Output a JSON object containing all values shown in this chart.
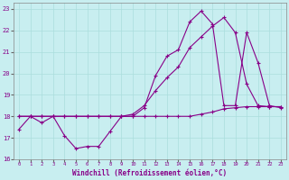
{
  "xlabel": "Windchill (Refroidissement éolien,°C)",
  "background_color": "#c8eef0",
  "line_color": "#880088",
  "xlim": [
    -0.5,
    23.5
  ],
  "ylim": [
    16,
    23.3
  ],
  "yticks": [
    16,
    17,
    18,
    19,
    20,
    21,
    22,
    23
  ],
  "xticks": [
    0,
    1,
    2,
    3,
    4,
    5,
    6,
    7,
    8,
    9,
    10,
    11,
    12,
    13,
    14,
    15,
    16,
    17,
    18,
    19,
    20,
    21,
    22,
    23
  ],
  "series1_x": [
    0,
    1,
    2,
    3,
    4,
    5,
    6,
    7,
    8,
    9,
    10,
    11,
    12,
    13,
    14,
    15,
    16,
    17,
    18,
    19,
    20,
    21,
    22,
    23
  ],
  "series1_y": [
    17.4,
    18.0,
    17.7,
    18.0,
    17.1,
    16.5,
    16.6,
    16.6,
    17.3,
    18.0,
    18.0,
    18.4,
    19.9,
    20.8,
    21.1,
    22.4,
    22.9,
    22.3,
    18.5,
    18.5,
    21.9,
    20.5,
    18.5,
    18.4
  ],
  "series2_x": [
    0,
    1,
    2,
    3,
    4,
    5,
    6,
    7,
    8,
    9,
    10,
    11,
    12,
    13,
    14,
    15,
    16,
    17,
    18,
    19,
    20,
    21,
    22,
    23
  ],
  "series2_y": [
    18.0,
    18.0,
    18.0,
    18.0,
    18.0,
    18.0,
    18.0,
    18.0,
    18.0,
    18.0,
    18.0,
    18.0,
    18.0,
    18.0,
    18.0,
    18.0,
    18.1,
    18.2,
    18.35,
    18.4,
    18.45,
    18.45,
    18.45,
    18.45
  ],
  "series3_x": [
    0,
    1,
    2,
    3,
    4,
    5,
    6,
    7,
    8,
    9,
    10,
    11,
    12,
    13,
    14,
    15,
    16,
    17,
    18,
    19,
    20,
    21,
    22,
    23
  ],
  "series3_y": [
    18.0,
    18.0,
    18.0,
    18.0,
    18.0,
    18.0,
    18.0,
    18.0,
    18.0,
    18.0,
    18.1,
    18.5,
    19.2,
    19.8,
    20.3,
    21.2,
    21.7,
    22.2,
    22.6,
    21.9,
    19.5,
    18.5,
    18.45,
    18.45
  ]
}
